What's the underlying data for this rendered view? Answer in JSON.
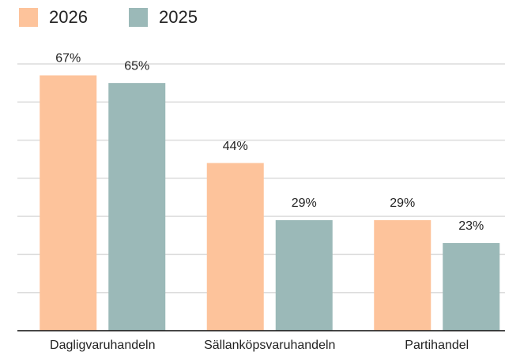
{
  "chart_data": {
    "type": "bar",
    "categories": [
      "Dagligvaruhandeln",
      "Sällanköpsvaruhandeln",
      "Partihandel"
    ],
    "series": [
      {
        "name": "2026",
        "color": "#fdc39b",
        "values": [
          67,
          44,
          29
        ],
        "value_labels": [
          "67%",
          "44%",
          "29%"
        ]
      },
      {
        "name": "2025",
        "color": "#9bb9b8",
        "values": [
          65,
          29,
          23
        ],
        "value_labels": [
          "65%",
          "29%",
          "23%"
        ]
      }
    ],
    "ylim": [
      0,
      70
    ],
    "yticks": [
      0,
      10,
      20,
      30,
      40,
      50,
      60,
      70
    ],
    "grid": true,
    "legend": "top-left"
  }
}
